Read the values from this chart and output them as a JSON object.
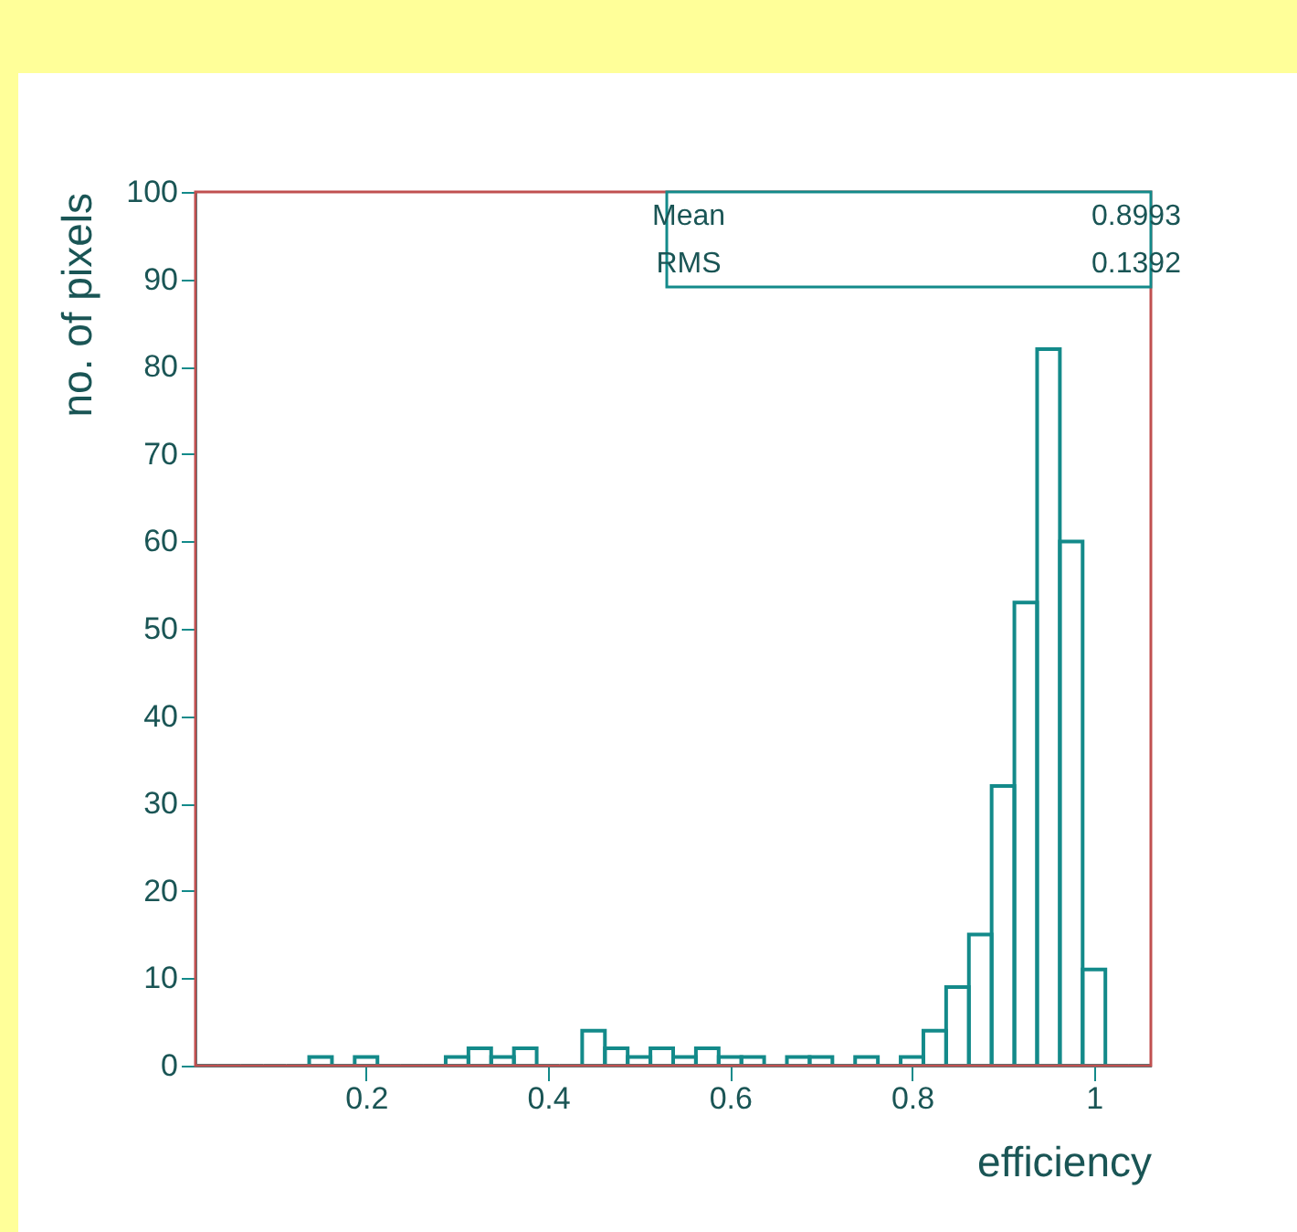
{
  "chart_data": {
    "type": "histogram",
    "xlabel": "efficiency",
    "ylabel": "no. of pixels",
    "color": "#138a8a",
    "bins": [
      0.0125,
      0.0375,
      0.0625,
      0.0875,
      0.1125,
      0.1375,
      0.1625,
      0.1875,
      0.2125,
      0.2375,
      0.2625,
      0.2875,
      0.3125,
      0.3375,
      0.3625,
      0.3875,
      0.4125,
      0.4375,
      0.4625,
      0.4875,
      0.5125,
      0.5375,
      0.5625,
      0.5875,
      0.6125,
      0.6375,
      0.6625,
      0.6875,
      0.7125,
      0.7375,
      0.7625,
      0.7875,
      0.8125,
      0.8375,
      0.8625,
      0.8875,
      0.9125,
      0.9375,
      0.9625,
      0.9875,
      1.0125,
      1.0375,
      1.0625
    ],
    "values": [
      0,
      0,
      0,
      0,
      0,
      1,
      0,
      1,
      0,
      0,
      0,
      1,
      2,
      1,
      2,
      0,
      0,
      4,
      2,
      1,
      2,
      1,
      2,
      1,
      1,
      0,
      1,
      1,
      0,
      1,
      0,
      1,
      4,
      9,
      15,
      32,
      53,
      82,
      60,
      11,
      0,
      0
    ],
    "xlim": [
      0.0125,
      1.0625
    ],
    "xticks": [
      0.2,
      0.4,
      0.6,
      0.8,
      1
    ],
    "ylim": [
      0,
      100
    ],
    "yticks": [
      0,
      10,
      20,
      30,
      40,
      50,
      60,
      70,
      80,
      90,
      100
    ],
    "annotations": [
      "Mean",
      "0.8993",
      "RMS",
      "0.1392"
    ]
  }
}
